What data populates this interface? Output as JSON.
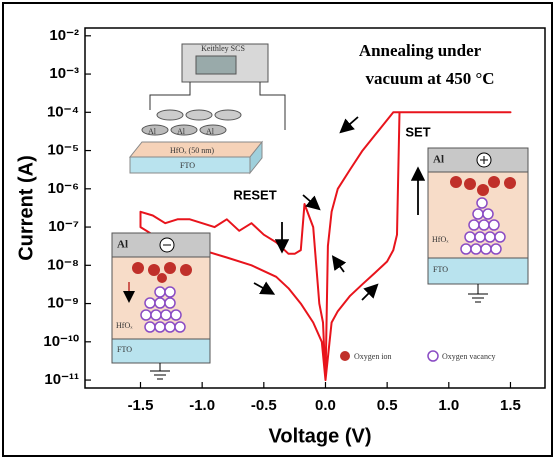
{
  "chart_data": {
    "type": "line",
    "x_label": "Voltage (V)",
    "y_label": "Current (A)",
    "xlim": [
      -1.95,
      1.78
    ],
    "ylim": [
      6.2e-12,
      0.016
    ],
    "ylog": true,
    "grid": false,
    "xticks": [
      -1.5,
      {
        "value": -1,
        "label": "-1.0"
      },
      -0.5,
      {
        "value": 0,
        "label": "0.0"
      },
      0.5,
      {
        "value": 1,
        "label": "1.0"
      },
      1.5
    ],
    "yticks": [
      {
        "value": 0.01,
        "label": "10⁻²"
      },
      {
        "value": 0.001,
        "label": "10⁻³"
      },
      {
        "value": 0.0001,
        "label": "10⁻⁴"
      },
      {
        "value": 1e-05,
        "label": "10⁻⁵"
      },
      {
        "value": 1e-06,
        "label": "10⁻⁶"
      },
      {
        "value": 1e-07,
        "label": "10⁻⁷"
      },
      {
        "value": 1e-08,
        "label": "10⁻⁸"
      },
      {
        "value": 1e-09,
        "label": "10⁻⁹"
      },
      {
        "value": 1e-10,
        "label": "10⁻¹⁰"
      },
      {
        "value": 1e-11,
        "label": "10⁻¹¹"
      }
    ],
    "series": [
      {
        "color": "#e8141c",
        "x": [
          0,
          -0.02,
          -0.05,
          -0.1,
          -0.17,
          -0.2,
          -0.25,
          -0.3,
          -0.4,
          -0.5,
          -0.6,
          -0.7,
          -0.8,
          -0.9,
          -1.0,
          -1.1,
          -1.2,
          -1.3,
          -1.4,
          -1.5,
          -1.5,
          -1.4,
          -1.2,
          -1.0,
          -0.8,
          -0.6,
          -0.4,
          -0.3,
          -0.2,
          -0.1,
          -0.03,
          0,
          0.05,
          0.1,
          0.2,
          0.3,
          0.4,
          0.5,
          0.55,
          0.58,
          0.6,
          0.8,
          1.0,
          1.5,
          1.0,
          0.55,
          0.4,
          0.3,
          0.2,
          0.1,
          0.05,
          0.02,
          0
        ],
        "values": [
          1e-11,
          3.2e-10,
          1e-09,
          1e-07,
          4e-07,
          2.5e-08,
          2e-08,
          2e-08,
          4e-08,
          6.3e-08,
          1.26e-07,
          8e-08,
          1.6e-07,
          1e-07,
          1.26e-07,
          1.6e-07,
          1.6e-07,
          1.26e-07,
          2e-07,
          2.5e-07,
          1e-07,
          6.3e-08,
          4e-08,
          2.5e-08,
          1.6e-08,
          1e-08,
          5e-09,
          2.5e-09,
          1e-09,
          3.2e-10,
          1e-10,
          1e-11,
          3.2e-10,
          6.3e-10,
          1.6e-09,
          3.2e-09,
          6.3e-09,
          1.26e-08,
          2.5e-08,
          6.3e-08,
          0.0001,
          0.0001,
          0.0001,
          0.0001,
          0.0001,
          0.0001,
          2.5e-05,
          1e-05,
          3.2e-06,
          1e-06,
          2.5e-07,
          3.2e-08,
          1e-11
        ]
      }
    ],
    "annotations": [
      "Annealing under",
      "vacuum at 450 °C",
      "RESET",
      "SET"
    ]
  },
  "insets": {
    "device": {
      "instrument": "Keithley SCS",
      "electrodes": [
        "Al",
        "Al",
        "Al"
      ],
      "oxide": "HfOₓ (50 nm)",
      "substrate": "FTO"
    },
    "set_state": {
      "top": "Al",
      "oxide": "HfOₓ",
      "bottom": "FTO"
    },
    "reset_state": {
      "top": "Al",
      "oxide": "HfOₓ",
      "bottom": "FTO"
    },
    "legend": [
      "Oxygen ion",
      "Oxygen vacancy"
    ]
  }
}
